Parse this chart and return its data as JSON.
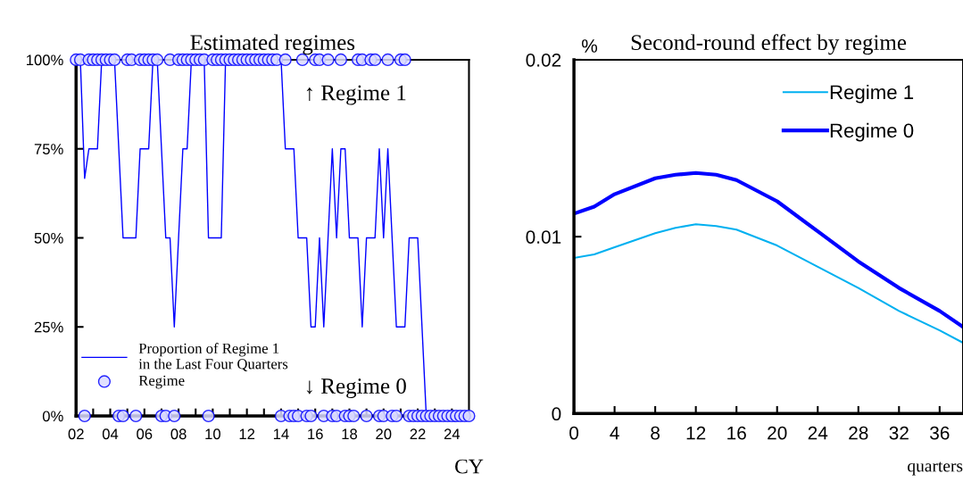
{
  "chart_data": [
    {
      "type": "line",
      "title": "Estimated regimes",
      "xlabel": "CY",
      "xlim": [
        2002,
        2025
      ],
      "xticks": [
        {
          "value": 2002,
          "label": "02"
        },
        {
          "value": 2003,
          "label": null
        },
        {
          "value": 2004,
          "label": "04"
        },
        {
          "value": 2005,
          "label": null
        },
        {
          "value": 2006,
          "label": "06"
        },
        {
          "value": 2007,
          "label": null
        },
        {
          "value": 2008,
          "label": "08"
        },
        {
          "value": 2009,
          "label": null
        },
        {
          "value": 2010,
          "label": "10"
        },
        {
          "value": 2011,
          "label": null
        },
        {
          "value": 2012,
          "label": "12"
        },
        {
          "value": 2013,
          "label": null
        },
        {
          "value": 2014,
          "label": "14"
        },
        {
          "value": 2015,
          "label": null
        },
        {
          "value": 2016,
          "label": "16"
        },
        {
          "value": 2017,
          "label": null
        },
        {
          "value": 2018,
          "label": "18"
        },
        {
          "value": 2019,
          "label": null
        },
        {
          "value": 2020,
          "label": "20"
        },
        {
          "value": 2021,
          "label": null
        },
        {
          "value": 2022,
          "label": "22"
        },
        {
          "value": 2023,
          "label": null
        },
        {
          "value": 2024,
          "label": "24"
        }
      ],
      "ylim": [
        0,
        100
      ],
      "yticks": [
        {
          "value": 0,
          "label": "0%"
        },
        {
          "value": 25,
          "label": "25%"
        },
        {
          "value": 50,
          "label": "50%"
        },
        {
          "value": 75,
          "label": "75%"
        },
        {
          "value": 100,
          "label": "100%"
        }
      ],
      "legend": "bottom left",
      "grid": false,
      "annotations": [
        "↑ Regime 1",
        "↓ Regime 0"
      ],
      "series": [
        {
          "name": "Proportion of Regime 1\nin the Last Four Quarters",
          "color": "#0000ff",
          "x": [
            2002.25,
            2002.5,
            2002.75,
            2003,
            2003.25,
            2003.5,
            2003.75,
            2004,
            2004.25,
            2004.5,
            2004.75,
            2005,
            2005.25,
            2005.5,
            2005.75,
            2006,
            2006.25,
            2006.5,
            2006.75,
            2007,
            2007.25,
            2007.5,
            2007.75,
            2008,
            2008.25,
            2008.5,
            2008.75,
            2009,
            2009.25,
            2009.5,
            2009.75,
            2010,
            2010.25,
            2010.5,
            2010.75,
            2011,
            2011.25,
            2011.5,
            2011.75,
            2012,
            2012.25,
            2012.5,
            2012.75,
            2013,
            2013.25,
            2013.5,
            2013.75,
            2014,
            2014.25,
            2014.5,
            2014.75,
            2015,
            2015.25,
            2015.5,
            2015.75,
            2016,
            2016.25,
            2016.5,
            2016.75,
            2017,
            2017.25,
            2017.5,
            2017.75,
            2018,
            2018.25,
            2018.5,
            2018.75,
            2019,
            2019.25,
            2019.5,
            2019.75,
            2020,
            2020.25,
            2020.5,
            2020.75,
            2021,
            2021.25,
            2021.5,
            2021.75,
            2022,
            2022.25,
            2022.5,
            2022.75,
            2023,
            2023.25,
            2023.5,
            2023.75,
            2024,
            2024.25,
            2024.5,
            2024.75,
            2025
          ],
          "values": [
            100,
            66.7,
            75,
            75,
            75,
            100,
            100,
            100,
            100,
            75,
            50,
            50,
            50,
            50,
            75,
            75,
            75,
            100,
            100,
            75,
            50,
            50,
            25,
            50,
            75,
            75,
            100,
            100,
            100,
            100,
            50,
            50,
            50,
            50,
            100,
            100,
            100,
            100,
            100,
            100,
            100,
            100,
            100,
            100,
            100,
            100,
            100,
            100,
            75,
            75,
            75,
            50,
            50,
            50,
            25,
            25,
            50,
            25,
            50,
            75,
            50,
            75,
            75,
            50,
            50,
            50,
            25,
            50,
            50,
            50,
            75,
            50,
            75,
            50,
            25,
            25,
            25,
            50,
            50,
            50,
            25,
            0,
            0,
            0,
            0,
            0,
            0,
            0,
            0,
            0,
            0,
            0
          ]
        },
        {
          "name": "Regime",
          "type": "scatter",
          "color": "#0000ff",
          "marker": "circle",
          "x": [
            2002,
            2002.25,
            2002.5,
            2002.75,
            2003,
            2003.25,
            2003.5,
            2003.75,
            2004,
            2004.25,
            2004.5,
            2004.75,
            2005,
            2005.25,
            2005.5,
            2005.75,
            2006,
            2006.25,
            2006.5,
            2006.75,
            2007,
            2007.25,
            2007.5,
            2007.75,
            2008,
            2008.25,
            2008.5,
            2008.75,
            2009,
            2009.25,
            2009.5,
            2009.75,
            2010,
            2010.25,
            2010.5,
            2010.75,
            2011,
            2011.25,
            2011.5,
            2011.75,
            2012,
            2012.25,
            2012.5,
            2012.75,
            2013,
            2013.25,
            2013.5,
            2013.75,
            2014,
            2014.25,
            2014.5,
            2014.75,
            2015,
            2015.25,
            2015.5,
            2015.75,
            2016,
            2016.25,
            2016.5,
            2016.75,
            2017,
            2017.25,
            2017.5,
            2017.75,
            2018,
            2018.25,
            2018.5,
            2018.75,
            2019,
            2019.25,
            2019.5,
            2019.75,
            2020,
            2020.25,
            2020.5,
            2020.75,
            2021,
            2021.25,
            2021.5,
            2021.75,
            2022,
            2022.25,
            2022.5,
            2022.75,
            2023,
            2023.25,
            2023.5,
            2023.75,
            2024,
            2024.25,
            2024.5,
            2024.75,
            2025
          ],
          "values": [
            100,
            100,
            0,
            100,
            100,
            100,
            100,
            100,
            100,
            100,
            0,
            0,
            100,
            100,
            0,
            100,
            100,
            100,
            100,
            100,
            0,
            0,
            100,
            0,
            100,
            100,
            100,
            100,
            100,
            100,
            100,
            0,
            100,
            100,
            100,
            100,
            100,
            100,
            100,
            100,
            100,
            100,
            100,
            100,
            100,
            100,
            100,
            100,
            0,
            100,
            0,
            0,
            0,
            100,
            0,
            0,
            100,
            100,
            0,
            100,
            0,
            0,
            100,
            0,
            0,
            0,
            100,
            100,
            0,
            100,
            100,
            0,
            0,
            100,
            0,
            0,
            100,
            100,
            0,
            0,
            0,
            0,
            0,
            0,
            0,
            0,
            0,
            0,
            0,
            0,
            0,
            0,
            0
          ]
        }
      ]
    },
    {
      "type": "line",
      "title": "Second-round effect by regime",
      "xlabel": "quarters",
      "ylabel": "%",
      "xlim": [
        0,
        38.3
      ],
      "xticks": [
        0,
        4,
        8,
        12,
        16,
        20,
        24,
        28,
        32,
        36
      ],
      "ylim": [
        0,
        0.02
      ],
      "yticks": [
        {
          "value": 0,
          "label": "0"
        },
        {
          "value": 0.01,
          "label": "0.01"
        },
        {
          "value": 0.02,
          "label": "0.02"
        }
      ],
      "legend": "top right",
      "grid": false,
      "x": [
        0,
        2,
        4,
        8,
        10,
        12,
        14,
        16,
        20,
        24,
        28,
        32,
        36,
        38.3
      ],
      "series": [
        {
          "name": "Regime 1",
          "color": "#00b0f0",
          "values": [
            0.0088,
            0.009,
            0.0094,
            0.0102,
            0.0105,
            0.0107,
            0.0106,
            0.0104,
            0.0095,
            0.0083,
            0.0071,
            0.0058,
            0.0047,
            0.004
          ]
        },
        {
          "name": "Regime 0",
          "color": "#0000ff",
          "values": [
            0.0113,
            0.0117,
            0.0124,
            0.0133,
            0.0135,
            0.0136,
            0.0135,
            0.0132,
            0.012,
            0.0103,
            0.0086,
            0.0071,
            0.0058,
            0.0049
          ]
        }
      ]
    }
  ]
}
